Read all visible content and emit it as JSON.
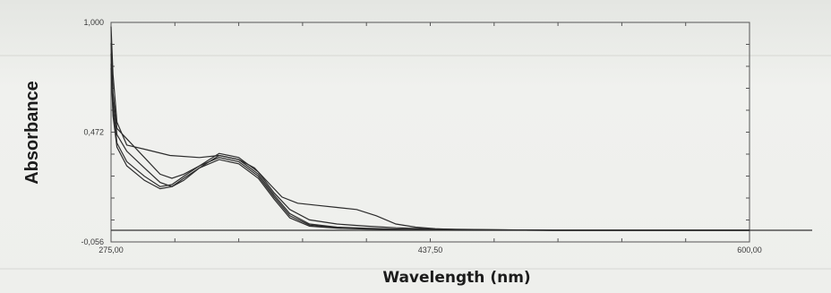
{
  "chart_data": {
    "type": "line",
    "xlabel": "Wavelength (nm)",
    "ylabel": "Absorbance",
    "xlim": [
      275.0,
      600.0
    ],
    "ylim": [
      -0.056,
      1.0
    ],
    "x_tick_labels": [
      "275,00",
      "437,50",
      "600,00"
    ],
    "x_tick_values": [
      275.0,
      437.5,
      600.0
    ],
    "y_tick_labels": [
      "-0,056",
      "0,472",
      "1,000"
    ],
    "y_tick_values": [
      -0.056,
      0.472,
      1.0
    ],
    "legend": "none",
    "grid": false,
    "series": [
      {
        "x": [
          275,
          276,
          278,
          283,
          292,
          305,
          320,
          330,
          340,
          348,
          356,
          362,
          370,
          380,
          390,
          400,
          410,
          420,
          430,
          440,
          450,
          470,
          500,
          550,
          600
        ],
        "y": [
          0.98,
          0.75,
          0.52,
          0.41,
          0.39,
          0.36,
          0.35,
          0.36,
          0.34,
          0.3,
          0.22,
          0.16,
          0.13,
          0.12,
          0.11,
          0.1,
          0.07,
          0.03,
          0.015,
          0.008,
          0.004,
          0.002,
          0.0,
          0.0,
          0.0
        ]
      },
      {
        "x": [
          275,
          276,
          278,
          283,
          292,
          300,
          306,
          312,
          320,
          330,
          340,
          350,
          358,
          366,
          376,
          390,
          405,
          420,
          440,
          470,
          500,
          550,
          600
        ],
        "y": [
          0.9,
          0.66,
          0.49,
          0.44,
          0.35,
          0.27,
          0.25,
          0.27,
          0.31,
          0.37,
          0.35,
          0.28,
          0.18,
          0.1,
          0.05,
          0.03,
          0.02,
          0.012,
          0.006,
          0.003,
          0.0,
          0.0,
          0.0
        ]
      },
      {
        "x": [
          275,
          276,
          278,
          283,
          292,
          300,
          306,
          312,
          320,
          330,
          340,
          350,
          358,
          366,
          376,
          390,
          405,
          420,
          440,
          470,
          500,
          550,
          600
        ],
        "y": [
          0.85,
          0.62,
          0.46,
          0.38,
          0.3,
          0.23,
          0.21,
          0.24,
          0.3,
          0.36,
          0.34,
          0.27,
          0.17,
          0.08,
          0.03,
          0.015,
          0.01,
          0.006,
          0.003,
          0.001,
          0.0,
          0.0,
          0.0
        ]
      },
      {
        "x": [
          275,
          276,
          278,
          283,
          292,
          300,
          306,
          312,
          320,
          330,
          340,
          350,
          358,
          366,
          376,
          390,
          405,
          420,
          440,
          470,
          500,
          550,
          600
        ],
        "y": [
          0.8,
          0.58,
          0.42,
          0.33,
          0.26,
          0.21,
          0.22,
          0.26,
          0.31,
          0.35,
          0.33,
          0.26,
          0.16,
          0.07,
          0.025,
          0.012,
          0.008,
          0.005,
          0.002,
          0.001,
          0.0,
          0.0,
          0.0
        ]
      },
      {
        "x": [
          275,
          276,
          278,
          283,
          292,
          300,
          306,
          312,
          320,
          330,
          340,
          350,
          358,
          366,
          376,
          390,
          405,
          420,
          440,
          470,
          500,
          550,
          600
        ],
        "y": [
          0.78,
          0.55,
          0.4,
          0.31,
          0.24,
          0.2,
          0.21,
          0.25,
          0.3,
          0.34,
          0.32,
          0.25,
          0.15,
          0.06,
          0.02,
          0.01,
          0.006,
          0.004,
          0.002,
          0.001,
          0.0,
          0.0,
          0.0
        ]
      }
    ]
  }
}
